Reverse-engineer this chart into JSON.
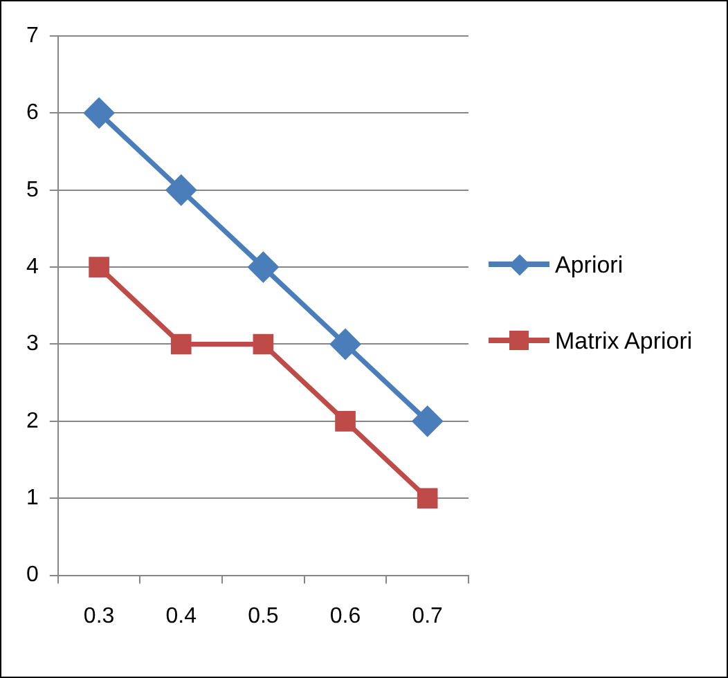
{
  "chart_data": {
    "type": "line",
    "categories": [
      "0.3",
      "0.4",
      "0.5",
      "0.6",
      "0.7"
    ],
    "series": [
      {
        "name": "Apriori",
        "color": "#4a7ebb",
        "values": [
          6,
          5,
          4,
          3,
          2
        ],
        "marker": "diamond"
      },
      {
        "name": "Matrix Apriori",
        "color": "#be4b48",
        "values": [
          4,
          3,
          3,
          2,
          1
        ],
        "marker": "square"
      }
    ],
    "ylim": [
      0,
      7
    ],
    "yticks": [
      0,
      1,
      2,
      3,
      4,
      5,
      6,
      7
    ],
    "grid": "y",
    "legend": "right",
    "line_style": "solid"
  }
}
